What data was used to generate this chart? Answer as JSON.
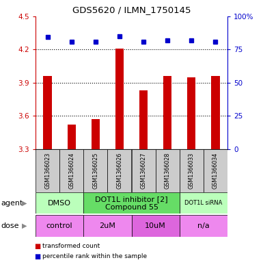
{
  "title": "GDS5620 / ILMN_1750145",
  "samples": [
    "GSM1366023",
    "GSM1366024",
    "GSM1366025",
    "GSM1366026",
    "GSM1366027",
    "GSM1366028",
    "GSM1366033",
    "GSM1366034"
  ],
  "bar_values": [
    3.96,
    3.52,
    3.57,
    4.21,
    3.83,
    3.96,
    3.95,
    3.96
  ],
  "percentile_values": [
    4.31,
    4.27,
    4.27,
    4.32,
    4.27,
    4.28,
    4.28,
    4.27
  ],
  "ylim_left": [
    3.3,
    4.5
  ],
  "ylim_right": [
    0,
    100
  ],
  "yticks_left": [
    3.3,
    3.6,
    3.9,
    4.2,
    4.5
  ],
  "yticks_right": [
    0,
    25,
    50,
    75,
    100
  ],
  "bar_color": "#cc0000",
  "dot_color": "#0000cc",
  "agent_groups": [
    {
      "label": "DMSO",
      "samples": [
        0,
        1
      ],
      "color": "#bbffbb",
      "fontsize": 8
    },
    {
      "label": "DOT1L inhibitor [2]\nCompound 55",
      "samples": [
        2,
        3,
        4,
        5
      ],
      "color": "#66dd66",
      "fontsize": 8
    },
    {
      "label": "DOT1L siRNA",
      "samples": [
        6,
        7
      ],
      "color": "#bbffbb",
      "fontsize": 6
    }
  ],
  "dose_groups": [
    {
      "label": "control",
      "samples": [
        0,
        1
      ],
      "color": "#ee88ee"
    },
    {
      "label": "2uM",
      "samples": [
        2,
        3
      ],
      "color": "#ee88ee"
    },
    {
      "label": "10uM",
      "samples": [
        4,
        5
      ],
      "color": "#dd66dd"
    },
    {
      "label": "n/a",
      "samples": [
        6,
        7
      ],
      "color": "#ee88ee"
    }
  ],
  "legend_items": [
    {
      "label": "transformed count",
      "color": "#cc0000"
    },
    {
      "label": "percentile rank within the sample",
      "color": "#0000cc"
    }
  ],
  "agent_label": "agent",
  "dose_label": "dose",
  "sample_box_color": "#cccccc",
  "bar_width": 0.35
}
